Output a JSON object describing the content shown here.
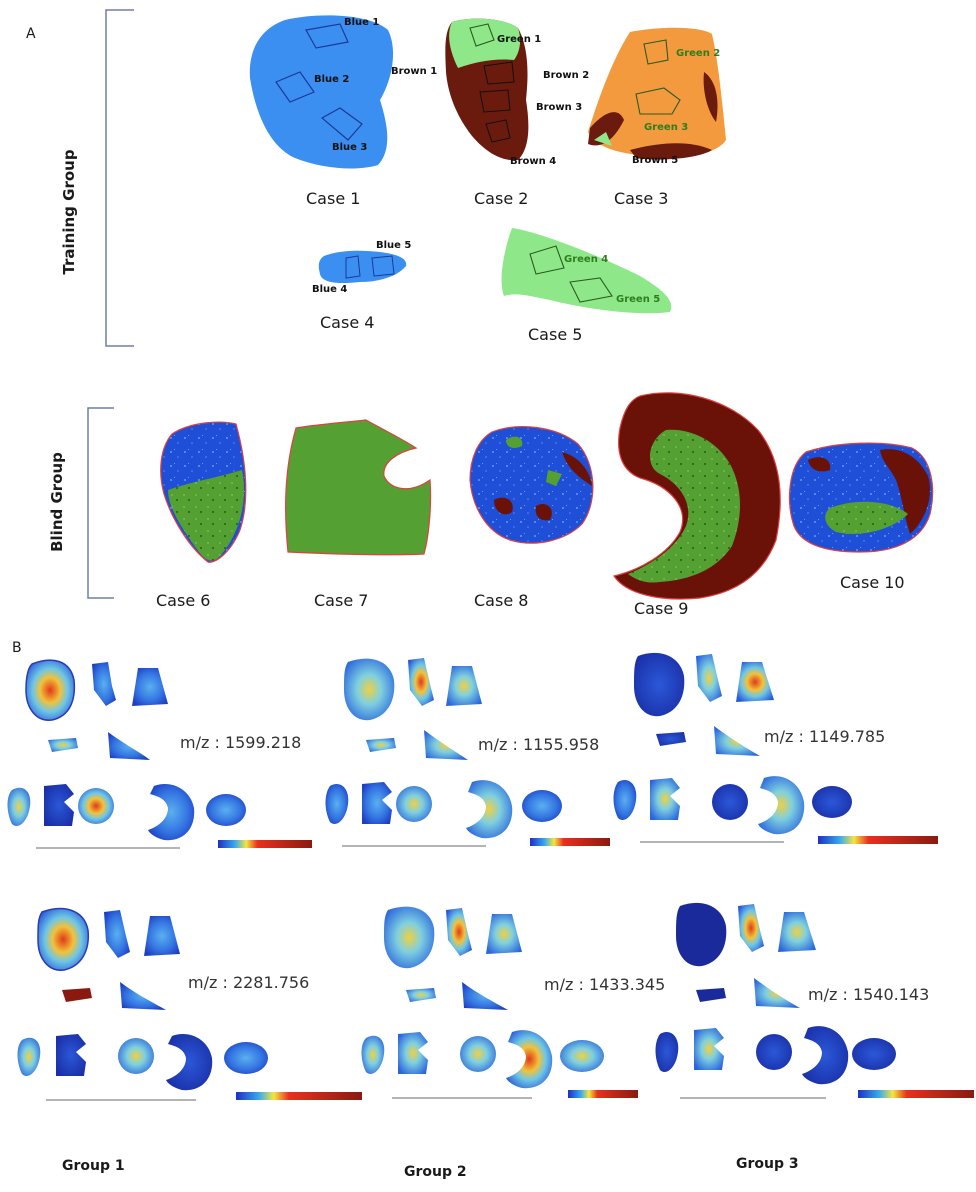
{
  "panel_labels": {
    "a": "A",
    "b": "B"
  },
  "training_label": "Training Group",
  "blind_label": "Blind Group",
  "training_cases": [
    "Case 1",
    "Case 2",
    "Case 3",
    "Case 4",
    "Case 5"
  ],
  "blind_cases": [
    "Case 6",
    "Case 7",
    "Case 8",
    "Case 9",
    "Case 10"
  ],
  "roi": {
    "blue1": "Blue 1",
    "blue2": "Blue 2",
    "blue3": "Blue 3",
    "blue4": "Blue 4",
    "blue5": "Blue 5",
    "green1": "Green 1",
    "green2": "Green 2",
    "green3": "Green 3",
    "green4": "Green 4",
    "green5": "Green 5",
    "brown1": "Brown 1",
    "brown2": "Brown 2",
    "brown3": "Brown 3",
    "brown4": "Brown 4",
    "brown5": "Brown 5"
  },
  "mz_values": [
    "m/z : 1599.218",
    "m/z : 1155.958",
    "m/z : 1149.785",
    "m/z : 2281.756",
    "m/z : 1433.345",
    "m/z : 1540.143"
  ],
  "groups": [
    "Group 1",
    "Group 2",
    "Group 3"
  ],
  "colors": {
    "blue_class": "#3b8ff0",
    "green_class": "#8ee88a",
    "brown_class": "#6b1a0e",
    "orange_class": "#f39a3e",
    "blind_blue": "#1f4fd6",
    "blind_green": "#55a032",
    "blind_brown": "#6a1208",
    "ion_low": "#1f3fcf",
    "ion_high": "#8a1a10"
  }
}
